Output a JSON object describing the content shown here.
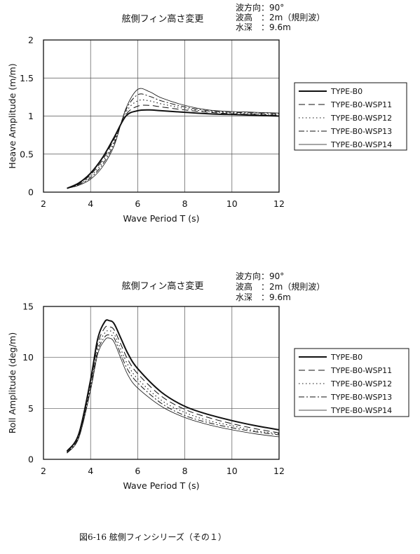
{
  "caption": "図6-16 舷側フィンシリーズ（その１）",
  "chart_data": [
    {
      "type": "line",
      "title": "舷側フィン高さ変更",
      "conditions": [
        "波方向：90°",
        "波高　：2m（規則波）",
        "水深　：9.6m"
      ],
      "xlabel": "Wave Period  T (s)",
      "ylabel": "Heave Amplitude (m/m)",
      "xlim": [
        2,
        12
      ],
      "ylim": [
        0,
        2
      ],
      "xticks": [
        2,
        4,
        6,
        8,
        10,
        12
      ],
      "yticks": [
        0,
        0.5,
        1,
        1.5,
        2
      ],
      "ytick_labels": [
        "0",
        "0.5",
        "1",
        "1.5",
        "2"
      ],
      "grid": true,
      "legend_position": "right",
      "x": [
        3,
        3.5,
        4,
        4.5,
        5,
        5.5,
        6,
        6.5,
        7,
        8,
        9,
        10,
        11,
        12
      ],
      "series": [
        {
          "name": "TYPE-B0",
          "style": "solid-thick",
          "values": [
            0.05,
            0.12,
            0.25,
            0.45,
            0.72,
            1.0,
            1.07,
            1.08,
            1.07,
            1.05,
            1.03,
            1.02,
            1.01,
            1.0
          ]
        },
        {
          "name": "TYPE-B0-WSP11",
          "style": "dashed",
          "values": [
            0.05,
            0.11,
            0.23,
            0.42,
            0.7,
            1.02,
            1.13,
            1.14,
            1.12,
            1.08,
            1.05,
            1.03,
            1.02,
            1.01
          ]
        },
        {
          "name": "TYPE-B0-WSP12",
          "style": "dotted",
          "values": [
            0.05,
            0.1,
            0.21,
            0.39,
            0.67,
            1.05,
            1.2,
            1.2,
            1.16,
            1.1,
            1.06,
            1.04,
            1.03,
            1.02
          ]
        },
        {
          "name": "TYPE-B0-WSP13",
          "style": "dashdot",
          "values": [
            0.05,
            0.1,
            0.19,
            0.36,
            0.64,
            1.08,
            1.28,
            1.26,
            1.2,
            1.12,
            1.07,
            1.05,
            1.04,
            1.03
          ]
        },
        {
          "name": "TYPE-B0-WSP14",
          "style": "solid-thin",
          "values": [
            0.05,
            0.09,
            0.17,
            0.33,
            0.61,
            1.1,
            1.35,
            1.32,
            1.24,
            1.14,
            1.08,
            1.06,
            1.05,
            1.04
          ]
        }
      ]
    },
    {
      "type": "line",
      "title": "舷側フィン高さ変更",
      "conditions": [
        "波方向：90°",
        "波高　：2m（規則波）",
        "水深　：9.6m"
      ],
      "xlabel": "Wave Period  T (s)",
      "ylabel": "Roll Amplitude (deg/m)",
      "xlim": [
        2,
        12
      ],
      "ylim": [
        0,
        15
      ],
      "xticks": [
        2,
        4,
        6,
        8,
        10,
        12
      ],
      "yticks": [
        0,
        5,
        10,
        15
      ],
      "ytick_labels": [
        "0",
        "5",
        "10",
        "15"
      ],
      "grid": true,
      "legend_position": "right",
      "x": [
        3,
        3.5,
        4,
        4.3,
        4.6,
        4.8,
        5,
        5.3,
        5.6,
        6,
        7,
        8,
        9,
        10,
        11,
        12
      ],
      "series": [
        {
          "name": "TYPE-B0",
          "style": "solid-thick",
          "values": [
            0.8,
            2.5,
            7.8,
            11.8,
            13.5,
            13.6,
            13.3,
            11.8,
            10.3,
            8.9,
            6.6,
            5.2,
            4.4,
            3.8,
            3.3,
            2.9
          ]
        },
        {
          "name": "TYPE-B0-WSP11",
          "style": "dashed",
          "values": [
            0.75,
            2.4,
            7.5,
            11.3,
            12.9,
            13.0,
            12.7,
            11.2,
            9.7,
            8.4,
            6.2,
            4.9,
            4.1,
            3.5,
            3.0,
            2.6
          ]
        },
        {
          "name": "TYPE-B0-WSP12",
          "style": "dotted",
          "values": [
            0.7,
            2.3,
            7.2,
            10.9,
            12.4,
            12.6,
            12.3,
            10.7,
            9.2,
            7.9,
            5.8,
            4.6,
            3.8,
            3.3,
            2.8,
            2.5
          ]
        },
        {
          "name": "TYPE-B0-WSP13",
          "style": "dashdot",
          "values": [
            0.65,
            2.2,
            7.0,
            10.6,
            12.0,
            12.2,
            11.9,
            10.2,
            8.7,
            7.5,
            5.5,
            4.3,
            3.6,
            3.1,
            2.7,
            2.4
          ]
        },
        {
          "name": "TYPE-B0-WSP14",
          "style": "solid-thin",
          "values": [
            0.6,
            2.1,
            6.8,
            10.3,
            11.7,
            11.9,
            11.5,
            9.8,
            8.2,
            7.0,
            5.2,
            4.1,
            3.4,
            2.9,
            2.5,
            2.2
          ]
        }
      ]
    }
  ]
}
